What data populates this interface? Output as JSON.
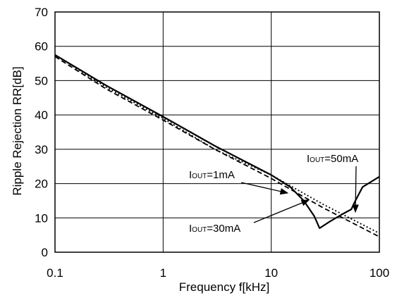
{
  "chart_data": {
    "type": "line",
    "xlabel": "Frequency f[kHz]",
    "ylabel": "Ripple Rejection RR[dB]",
    "xscale": "log",
    "xlim": [
      0.1,
      100
    ],
    "ylim": [
      0,
      70
    ],
    "grid": "major",
    "x_ticks": [
      {
        "value": 0.1,
        "label": "0.1"
      },
      {
        "value": 1,
        "label": "1"
      },
      {
        "value": 10,
        "label": "10"
      },
      {
        "value": 100,
        "label": "100"
      }
    ],
    "y_ticks": [
      {
        "value": 0,
        "label": "0"
      },
      {
        "value": 10,
        "label": "10"
      },
      {
        "value": 20,
        "label": "20"
      },
      {
        "value": 30,
        "label": "30"
      },
      {
        "value": 40,
        "label": "40"
      },
      {
        "value": 50,
        "label": "50"
      },
      {
        "value": 60,
        "label": "60"
      },
      {
        "value": 70,
        "label": "70"
      }
    ],
    "series": [
      {
        "name": "IOUT=1mA",
        "style": "dotted",
        "x": [
          0.1,
          0.3,
          1,
          3,
          10,
          30,
          100
        ],
        "y": [
          57.5,
          48,
          39,
          30,
          22.5,
          14,
          5.5
        ]
      },
      {
        "name": "IOUT=30mA",
        "style": "solid",
        "x": [
          0.1,
          0.3,
          1,
          3,
          10,
          15,
          20,
          25,
          28,
          35,
          45,
          55,
          60,
          70,
          100
        ],
        "y": [
          57.5,
          48.5,
          39.5,
          31,
          22.5,
          19,
          15,
          10.5,
          7,
          9,
          11,
          12.5,
          15,
          19,
          22
        ]
      },
      {
        "name": "IOUT=50mA",
        "style": "dashed",
        "x": [
          0.1,
          0.3,
          1,
          3,
          10,
          30,
          100
        ],
        "y": [
          57,
          47.5,
          38.5,
          30,
          21.5,
          13,
          4.5
        ]
      }
    ],
    "annotations": [
      {
        "prefix": "I",
        "sub": "OUT",
        "suffix": "=50mA"
      },
      {
        "prefix": "I",
        "sub": "OUT",
        "suffix": "=1mA"
      },
      {
        "prefix": "I",
        "sub": "OUT",
        "suffix": "=30mA"
      }
    ]
  }
}
